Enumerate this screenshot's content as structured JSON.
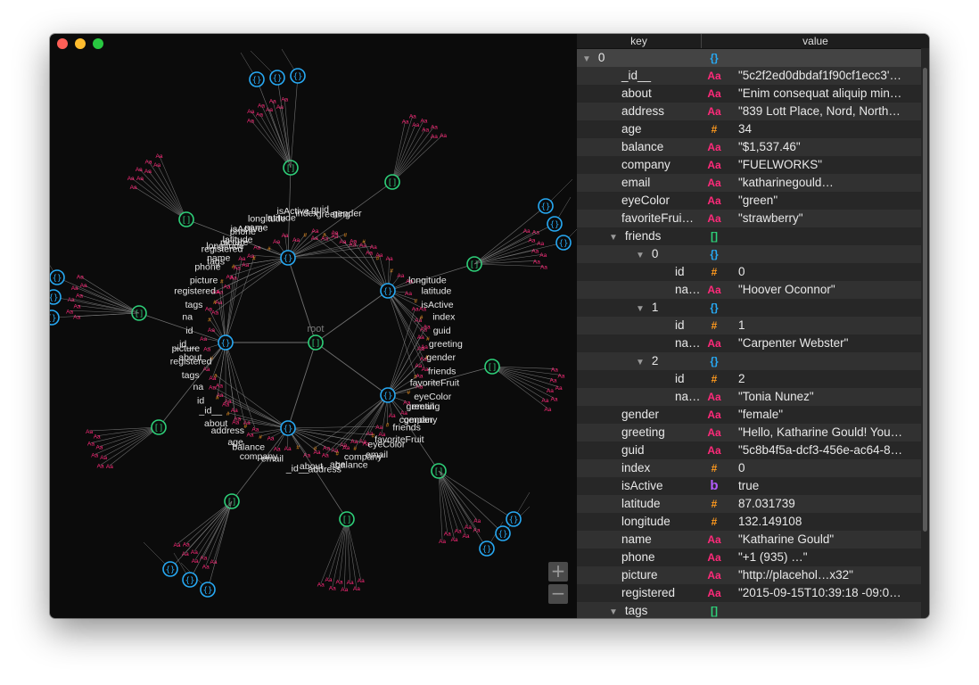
{
  "window": {
    "controls": [
      "close",
      "minimize",
      "maximize"
    ]
  },
  "colors": {
    "string": "#ff2a7a",
    "number": "#ff9a1e",
    "object": "#27aaf5",
    "array": "#2ed17a",
    "boolean": "#b45cff",
    "edge": "#8a8a8a"
  },
  "graph": {
    "root_label": "root",
    "zoom_in": "+",
    "zoom_out": "−",
    "labels": [
      {
        "text": "tags"
      },
      {
        "text": "registered"
      },
      {
        "text": "picture"
      },
      {
        "text": "phone"
      },
      {
        "text": "name"
      },
      {
        "text": "longitude"
      },
      {
        "text": "latitude"
      },
      {
        "text": "isActive"
      },
      {
        "text": "index"
      },
      {
        "text": "guid"
      },
      {
        "text": "greeting"
      },
      {
        "text": "gender"
      },
      {
        "text": "friends"
      },
      {
        "text": "favoriteFruit"
      },
      {
        "text": "eyeColor"
      },
      {
        "text": "email"
      },
      {
        "text": "company"
      },
      {
        "text": "balance"
      },
      {
        "text": "age"
      },
      {
        "text": "address"
      },
      {
        "text": "about"
      },
      {
        "text": "_id__"
      },
      {
        "text": "id"
      },
      {
        "text": "na"
      }
    ]
  },
  "tree": {
    "header": {
      "key": "key",
      "value": "value"
    },
    "rows": [
      {
        "key": "0",
        "icon": "{}",
        "value": "",
        "toggle": "▼"
      },
      {
        "key": "_id__",
        "icon": "Aa",
        "value": "\"5c2f2ed0dbdaf1f90cf1ecc3'…"
      },
      {
        "key": "about",
        "icon": "Aa",
        "value": "\"Enim consequat aliquip min…"
      },
      {
        "key": "address",
        "icon": "Aa",
        "value": "\"839 Lott Place, Nord, North…"
      },
      {
        "key": "age",
        "icon": "#",
        "value": "34"
      },
      {
        "key": "balance",
        "icon": "Aa",
        "value": "\"$1,537.46\""
      },
      {
        "key": "company",
        "icon": "Aa",
        "value": "\"FUELWORKS\""
      },
      {
        "key": "email",
        "icon": "Aa",
        "value": "\"katharinegould…"
      },
      {
        "key": "eyeColor",
        "icon": "Aa",
        "value": "\"green\""
      },
      {
        "key": "favoriteFrui…",
        "icon": "Aa",
        "value": "\"strawberry\""
      },
      {
        "key": "friends",
        "icon": "[]",
        "value": "",
        "toggle": "▼"
      },
      {
        "key": "0",
        "icon": "{}",
        "value": "",
        "toggle": "▼"
      },
      {
        "key": "id",
        "icon": "#",
        "value": "0"
      },
      {
        "key": "na…",
        "icon": "Aa",
        "value": "\"Hoover Oconnor\""
      },
      {
        "key": "1",
        "icon": "{}",
        "value": "",
        "toggle": "▼"
      },
      {
        "key": "id",
        "icon": "#",
        "value": "1"
      },
      {
        "key": "na…",
        "icon": "Aa",
        "value": "\"Carpenter Webster\""
      },
      {
        "key": "2",
        "icon": "{}",
        "value": "",
        "toggle": "▼"
      },
      {
        "key": "id",
        "icon": "#",
        "value": "2"
      },
      {
        "key": "na…",
        "icon": "Aa",
        "value": "\"Tonia Nunez\""
      },
      {
        "key": "gender",
        "icon": "Aa",
        "value": "\"female\""
      },
      {
        "key": "greeting",
        "icon": "Aa",
        "value": "\"Hello, Katharine Gould! You…"
      },
      {
        "key": "guid",
        "icon": "Aa",
        "value": "\"5c8b4f5a-dcf3-456e-ac64-8…"
      },
      {
        "key": "index",
        "icon": "#",
        "value": "0"
      },
      {
        "key": "isActive",
        "icon": "b",
        "value": "true"
      },
      {
        "key": "latitude",
        "icon": "#",
        "value": "87.031739"
      },
      {
        "key": "longitude",
        "icon": "#",
        "value": "132.149108"
      },
      {
        "key": "name",
        "icon": "Aa",
        "value": "\"Katharine Gould\""
      },
      {
        "key": "phone",
        "icon": "Aa",
        "value": "\"+1 (935) …\""
      },
      {
        "key": "picture",
        "icon": "Aa",
        "value": "\"http://placehol…x32\""
      },
      {
        "key": "registered",
        "icon": "Aa",
        "value": "\"2015-09-15T10:39:18 -09:0…"
      },
      {
        "key": "tags",
        "icon": "[]",
        "value": "",
        "toggle": "▼"
      }
    ]
  }
}
